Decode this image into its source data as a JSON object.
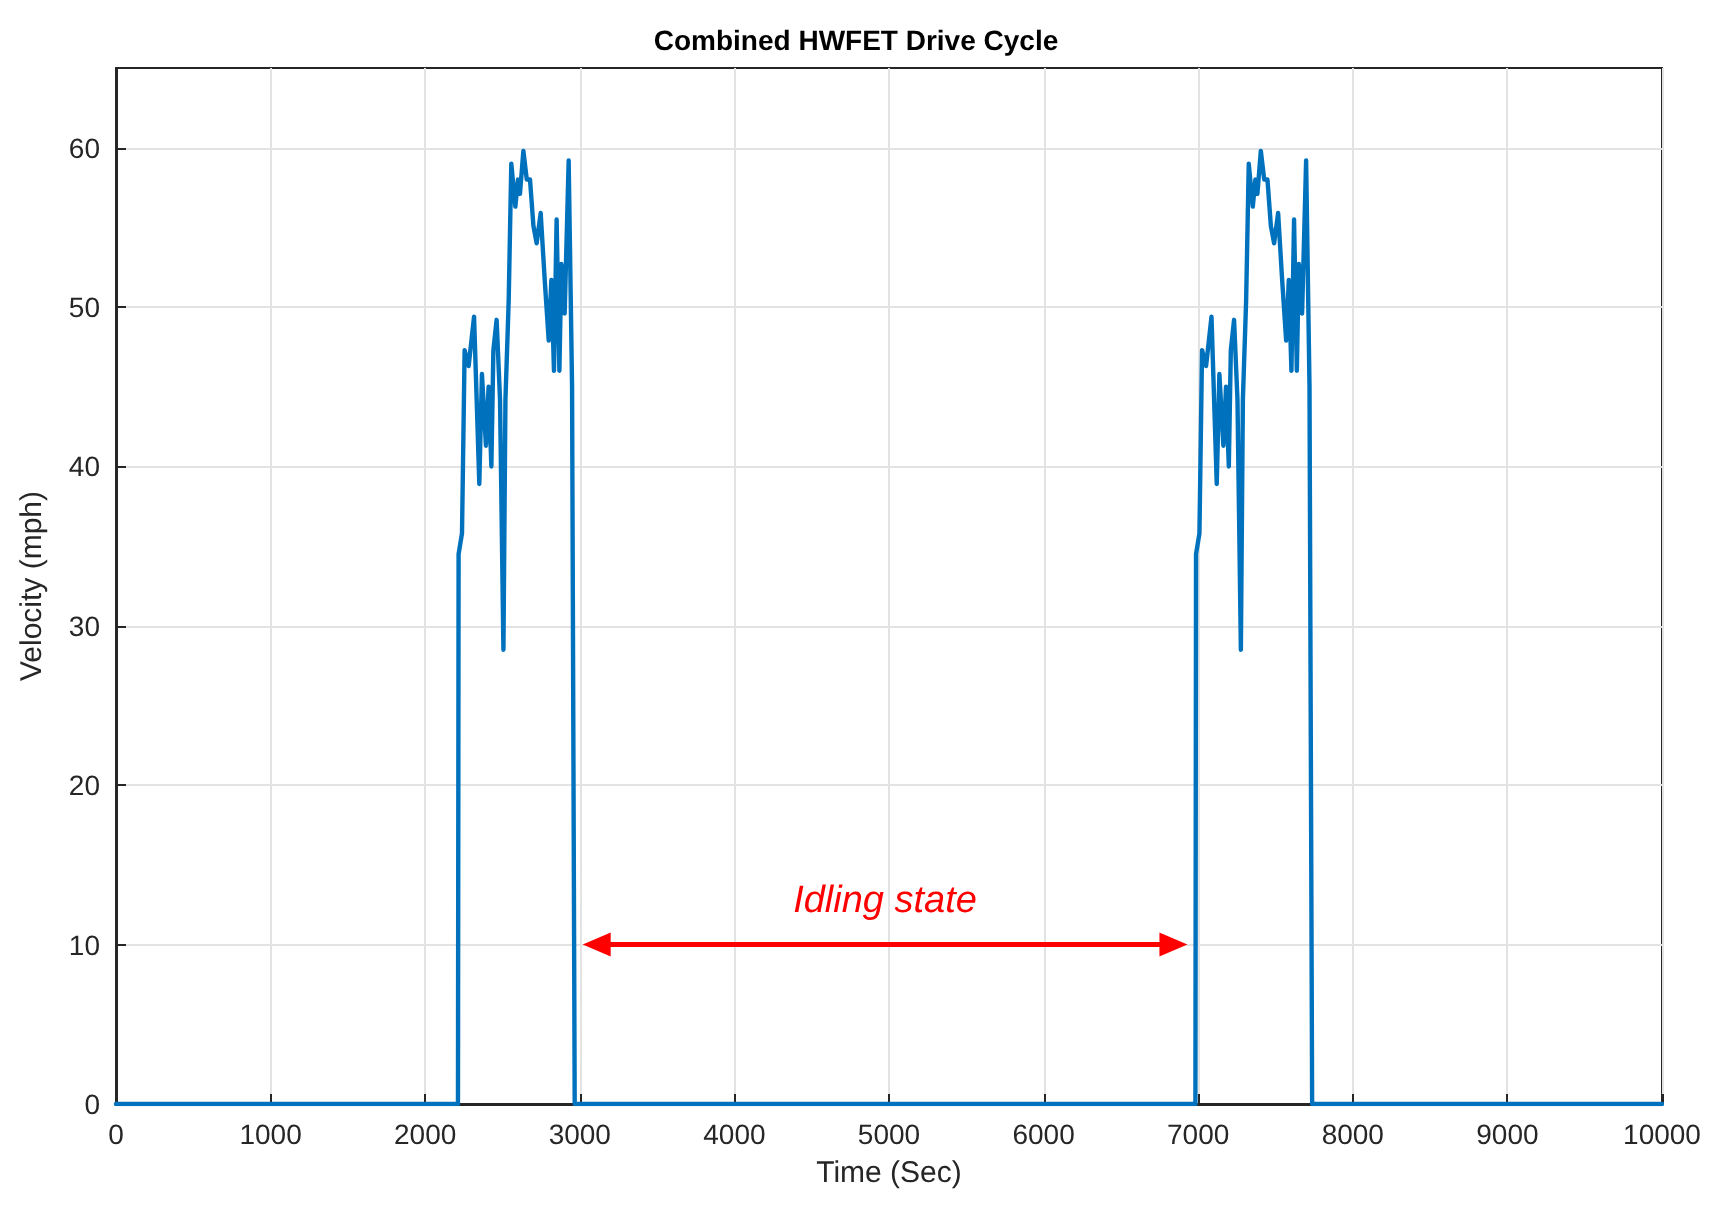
{
  "chart_data": {
    "type": "line",
    "title": "Combined HWFET Drive Cycle",
    "xlabel": "Time (Sec)",
    "ylabel": "Velocity (mph)",
    "xlim": [
      0,
      10000
    ],
    "xticks": [
      0,
      1000,
      2000,
      3000,
      4000,
      5000,
      6000,
      7000,
      8000,
      9000,
      10000
    ],
    "ylim": [
      0,
      65
    ],
    "yticks": [
      0,
      10,
      20,
      30,
      40,
      50,
      60
    ],
    "grid": true,
    "marker": "none",
    "line_style": "solid",
    "annotations": [
      "Idling state"
    ],
    "series": [
      {
        "color": "#0072bd",
        "x": [
          0,
          2212,
          2216,
          2238,
          2255,
          2281,
          2316,
          2350,
          2367,
          2393,
          2410,
          2428,
          2441,
          2462,
          2484,
          2506,
          2519,
          2540,
          2557,
          2583,
          2600,
          2613,
          2635,
          2657,
          2678,
          2700,
          2721,
          2747,
          2773,
          2799,
          2816,
          2833,
          2850,
          2868,
          2881,
          2902,
          2928,
          2950,
          2967,
          6982,
          6986,
          7008,
          7025,
          7051,
          7086,
          7120,
          7137,
          7163,
          7180,
          7198,
          7211,
          7232,
          7254,
          7276,
          7289,
          7310,
          7327,
          7353,
          7370,
          7383,
          7405,
          7427,
          7448,
          7470,
          7491,
          7517,
          7543,
          7569,
          7586,
          7603,
          7620,
          7638,
          7651,
          7672,
          7698,
          7720,
          7737,
          10000
        ],
        "values": [
          0,
          0,
          34.5,
          35.8,
          47.3,
          46.3,
          49.4,
          38.9,
          45.8,
          41.3,
          45,
          40,
          47.3,
          49.2,
          44.2,
          28.5,
          44.2,
          50.4,
          59,
          56.3,
          58,
          57.1,
          59.8,
          58,
          58,
          55.1,
          54,
          55.9,
          51.7,
          47.9,
          51.7,
          46,
          55.5,
          46,
          52.7,
          49.6,
          59.2,
          45,
          0,
          0,
          34.5,
          35.8,
          47.3,
          46.3,
          49.4,
          38.9,
          45.8,
          41.3,
          45,
          40,
          47.3,
          49.2,
          44.2,
          28.5,
          44.2,
          50.4,
          59,
          56.3,
          58,
          57.1,
          59.8,
          58,
          58,
          55.1,
          54,
          55.9,
          51.7,
          47.9,
          51.7,
          46,
          55.5,
          46,
          52.7,
          49.6,
          59.2,
          45,
          0,
          0
        ]
      }
    ]
  }
}
